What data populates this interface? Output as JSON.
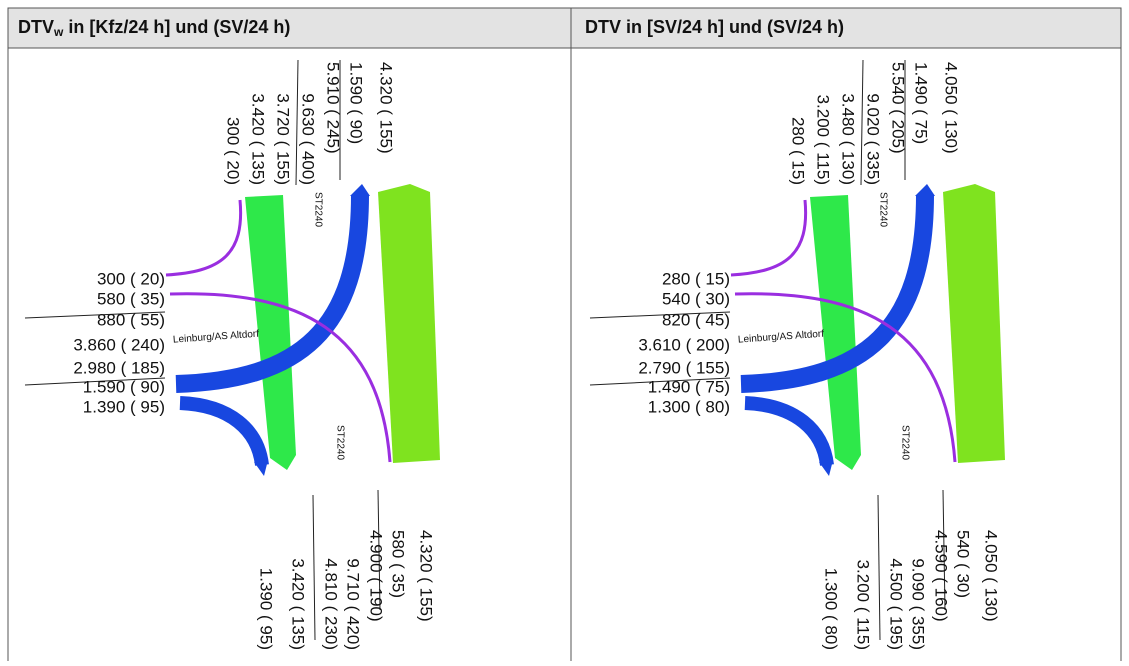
{
  "header": [
    {
      "main": "DTV",
      "sub": "w",
      "rest": " in [Kfz/24 h] und (SV/24 h)"
    },
    "DTV in [SV/24 h] und (SV/24 h)"
  ],
  "panels": [
    {
      "top": [
        "300 ( 20)",
        "3.420 ( 135)",
        "3.720 ( 155)",
        "9.630 ( 400)",
        "5.910 ( 245)",
        "1.590 ( 90)",
        "4.320 ( 155)"
      ],
      "left": [
        "300 ( 20)",
        "580 ( 35)",
        "880 ( 55)",
        "3.860 ( 240)",
        "2.980 ( 185)",
        "1.590 ( 90)",
        "1.390 ( 95)"
      ],
      "bottom": [
        "1.390 ( 95)",
        "3.420 ( 135)",
        "4.810 ( 230)",
        "9.710 ( 420)",
        "4.900 ( 190)",
        "580 ( 35)",
        "4.320 ( 155)"
      ],
      "road_top": "ST2240",
      "road_bottom": "ST2240",
      "road_side": "Leinburg/AS Altdorf"
    },
    {
      "top": [
        "280 ( 15)",
        "3.200 ( 115)",
        "3.480 ( 130)",
        "9.020 ( 335)",
        "5.540 ( 205)",
        "1.490 ( 75)",
        "4.050 ( 130)"
      ],
      "left": [
        "280 ( 15)",
        "540 ( 30)",
        "820 ( 45)",
        "3.610 ( 200)",
        "2.790 ( 155)",
        "1.490 ( 75)",
        "1.300 ( 80)"
      ],
      "bottom": [
        "1.300 ( 80)",
        "3.200 ( 115)",
        "4.500 ( 195)",
        "9.090 ( 355)",
        "4.590 ( 160)",
        "540 ( 30)",
        "4.050 ( 130)"
      ],
      "road_top": "ST2240",
      "road_bottom": "ST2240",
      "road_side": "Leinburg/AS Altdorf"
    }
  ]
}
